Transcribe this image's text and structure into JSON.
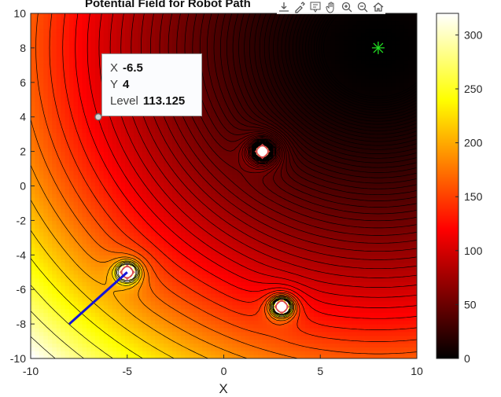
{
  "chart_data": {
    "type": "contour",
    "title": "Potential Field for Robot Path",
    "xlabel": "X",
    "ylabel": "",
    "xlim": [
      -10,
      10
    ],
    "ylim": [
      -10,
      10
    ],
    "xticks": [
      "-10",
      "-5",
      "0",
      "5",
      "10"
    ],
    "yticks": [
      "10",
      "8",
      "6",
      "4",
      "2",
      "0",
      "-2",
      "-4",
      "-6",
      "-8",
      "-10"
    ],
    "colormap": "hot",
    "colorbar": {
      "range": [
        0,
        320
      ],
      "ticks": [
        "300",
        "250",
        "200",
        "150",
        "100",
        "50",
        "0"
      ]
    },
    "goal": {
      "x": 8,
      "y": 8,
      "marker": "green-asterisk"
    },
    "obstacles": [
      {
        "x": -5,
        "y": -5
      },
      {
        "x": 2,
        "y": 2
      },
      {
        "x": 3,
        "y": -7
      }
    ],
    "path": {
      "x": [
        -8,
        -5
      ],
      "y": [
        -8,
        -5
      ],
      "color": "#1515d6"
    },
    "datatip": {
      "x_key": "X",
      "x_val": "-6.5",
      "y_key": "Y",
      "y_val": "4",
      "level_key": "Level",
      "level_val": "113.125",
      "x": -6.5,
      "y": 4
    }
  },
  "colors": {
    "goal": "#22dd22",
    "obstacle_marker": "#d94a4a",
    "path": "#1515d6",
    "contour": "#000000"
  },
  "toolbar_icons": [
    "export-icon",
    "brush-icon",
    "datatip-icon",
    "pan-icon",
    "zoom-in-icon",
    "zoom-out-icon",
    "home-icon"
  ]
}
